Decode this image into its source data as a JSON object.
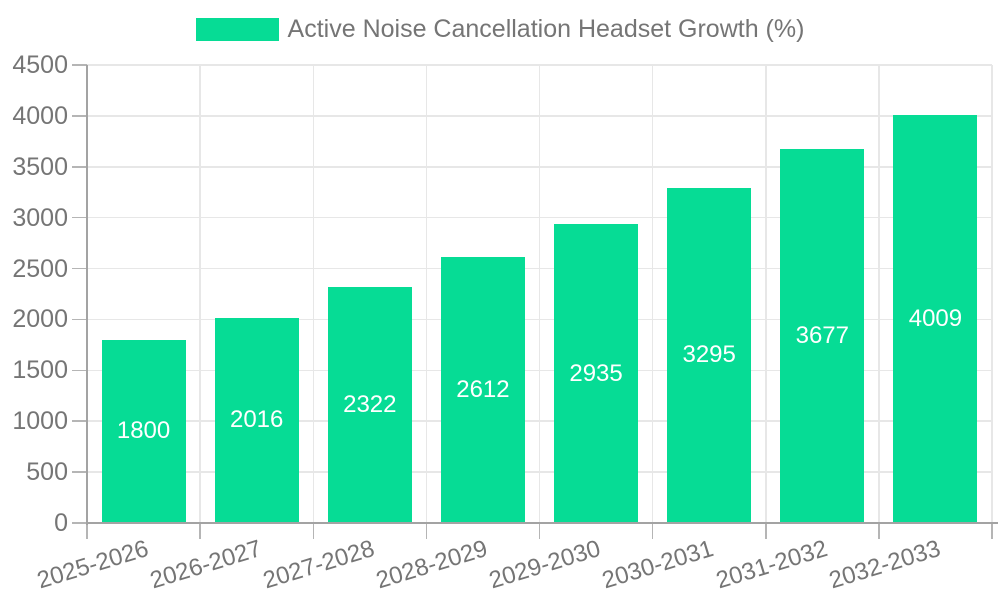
{
  "legend": {
    "label": "Active Noise Cancellation Headset Growth (%)"
  },
  "chart_data": {
    "type": "bar",
    "series_name": "Active Noise Cancellation Headset Growth (%)",
    "categories": [
      "2025-2026",
      "2026-2027",
      "2027-2028",
      "2028-2029",
      "2029-2030",
      "2030-2031",
      "2031-2032",
      "2032-2033"
    ],
    "values": [
      1800,
      2016,
      2322,
      2612,
      2935,
      3295,
      3677,
      4009
    ],
    "title": "",
    "xlabel": "",
    "ylabel": "",
    "ylim": [
      0,
      4500
    ],
    "ytick_interval": 500,
    "yticks": [
      0,
      500,
      1000,
      1500,
      2000,
      2500,
      3000,
      3500,
      4000,
      4500
    ],
    "grid": true,
    "legend_position": "top",
    "bar_label_position": "center",
    "colors": {
      "bar": "#06DC95",
      "bar_label": "#ffffff",
      "axis_text": "#757575",
      "grid": "#e7e7e7",
      "tick": "#b5b5b5",
      "axis_line": "#a3a3a3",
      "background": "#ffffff"
    }
  }
}
